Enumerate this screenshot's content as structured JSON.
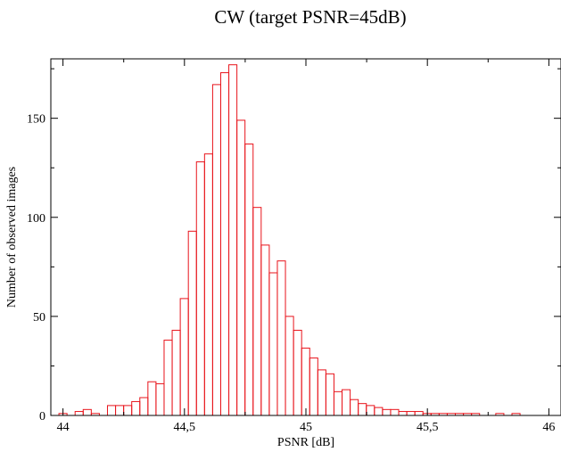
{
  "chart_data": {
    "type": "bar",
    "title": "CW (target PSNR=45dB)",
    "xlabel": "PSNR [dB]",
    "ylabel": "Number of observed images",
    "xlim": [
      43.95,
      46.05
    ],
    "ylim": [
      0,
      180
    ],
    "xticks": [
      {
        "value": 44.0,
        "label": "44"
      },
      {
        "value": 44.5,
        "label": "44,5"
      },
      {
        "value": 45.0,
        "label": "45"
      },
      {
        "value": 45.5,
        "label": "45,5"
      },
      {
        "value": 46.0,
        "label": "46"
      }
    ],
    "yticks": [
      {
        "value": 0,
        "label": "0"
      },
      {
        "value": 50,
        "label": "50"
      },
      {
        "value": 100,
        "label": "100"
      },
      {
        "value": 150,
        "label": "150"
      }
    ],
    "bin_start": 43.95,
    "bin_width": 0.0333,
    "values": [
      0,
      1,
      0,
      2,
      3,
      1,
      0,
      5,
      5,
      5,
      7,
      9,
      17,
      16,
      38,
      43,
      59,
      93,
      128,
      132,
      167,
      173,
      177,
      149,
      137,
      105,
      86,
      72,
      78,
      50,
      43,
      34,
      29,
      23,
      21,
      12,
      13,
      8,
      6,
      5,
      4,
      3,
      3,
      2,
      2,
      2,
      1,
      1,
      1,
      1,
      1,
      1,
      1,
      0,
      0,
      1,
      0,
      1
    ],
    "bar_color": "#e8141b",
    "grid": false
  }
}
